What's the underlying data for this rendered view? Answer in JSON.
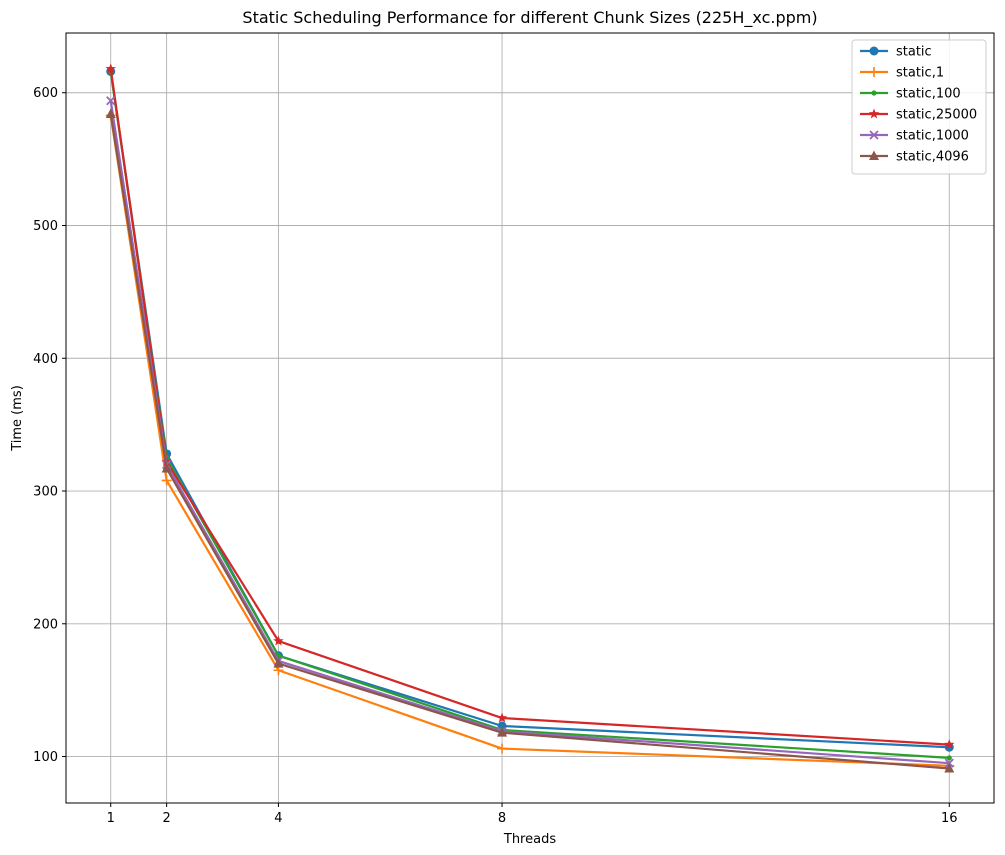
{
  "chart_data": {
    "type": "line",
    "title": "Static Scheduling Performance for different Chunk Sizes (225H_xc.ppm)",
    "xlabel": "Threads",
    "ylabel": "Time (ms)",
    "x": [
      1,
      2,
      4,
      8,
      16
    ],
    "xticks": [
      "1",
      "2",
      "4",
      "8",
      "16"
    ],
    "yticks": [
      100,
      200,
      300,
      400,
      500,
      600
    ],
    "xlim": [
      0.2,
      16.8
    ],
    "ylim": [
      65,
      645
    ],
    "grid": true,
    "legend_position": "top-right",
    "series": [
      {
        "name": "static",
        "color": "#1f77b4",
        "marker": "circle",
        "values": [
          616,
          328,
          176,
          123,
          107
        ]
      },
      {
        "name": "static,1",
        "color": "#ff7f0e",
        "marker": "plus",
        "values": [
          583,
          308,
          165,
          106,
          93
        ]
      },
      {
        "name": "static,100",
        "color": "#2ca02c",
        "marker": "point",
        "values": [
          616,
          325,
          176,
          120,
          99
        ]
      },
      {
        "name": "static,25000",
        "color": "#d62728",
        "marker": "star",
        "values": [
          618,
          322,
          187,
          129,
          109
        ]
      },
      {
        "name": "static,1000",
        "color": "#9467bd",
        "marker": "x",
        "values": [
          594,
          320,
          172,
          119,
          95
        ]
      },
      {
        "name": "static,4096",
        "color": "#8c564b",
        "marker": "triangle",
        "values": [
          584,
          317,
          170,
          118,
          91
        ]
      }
    ]
  }
}
